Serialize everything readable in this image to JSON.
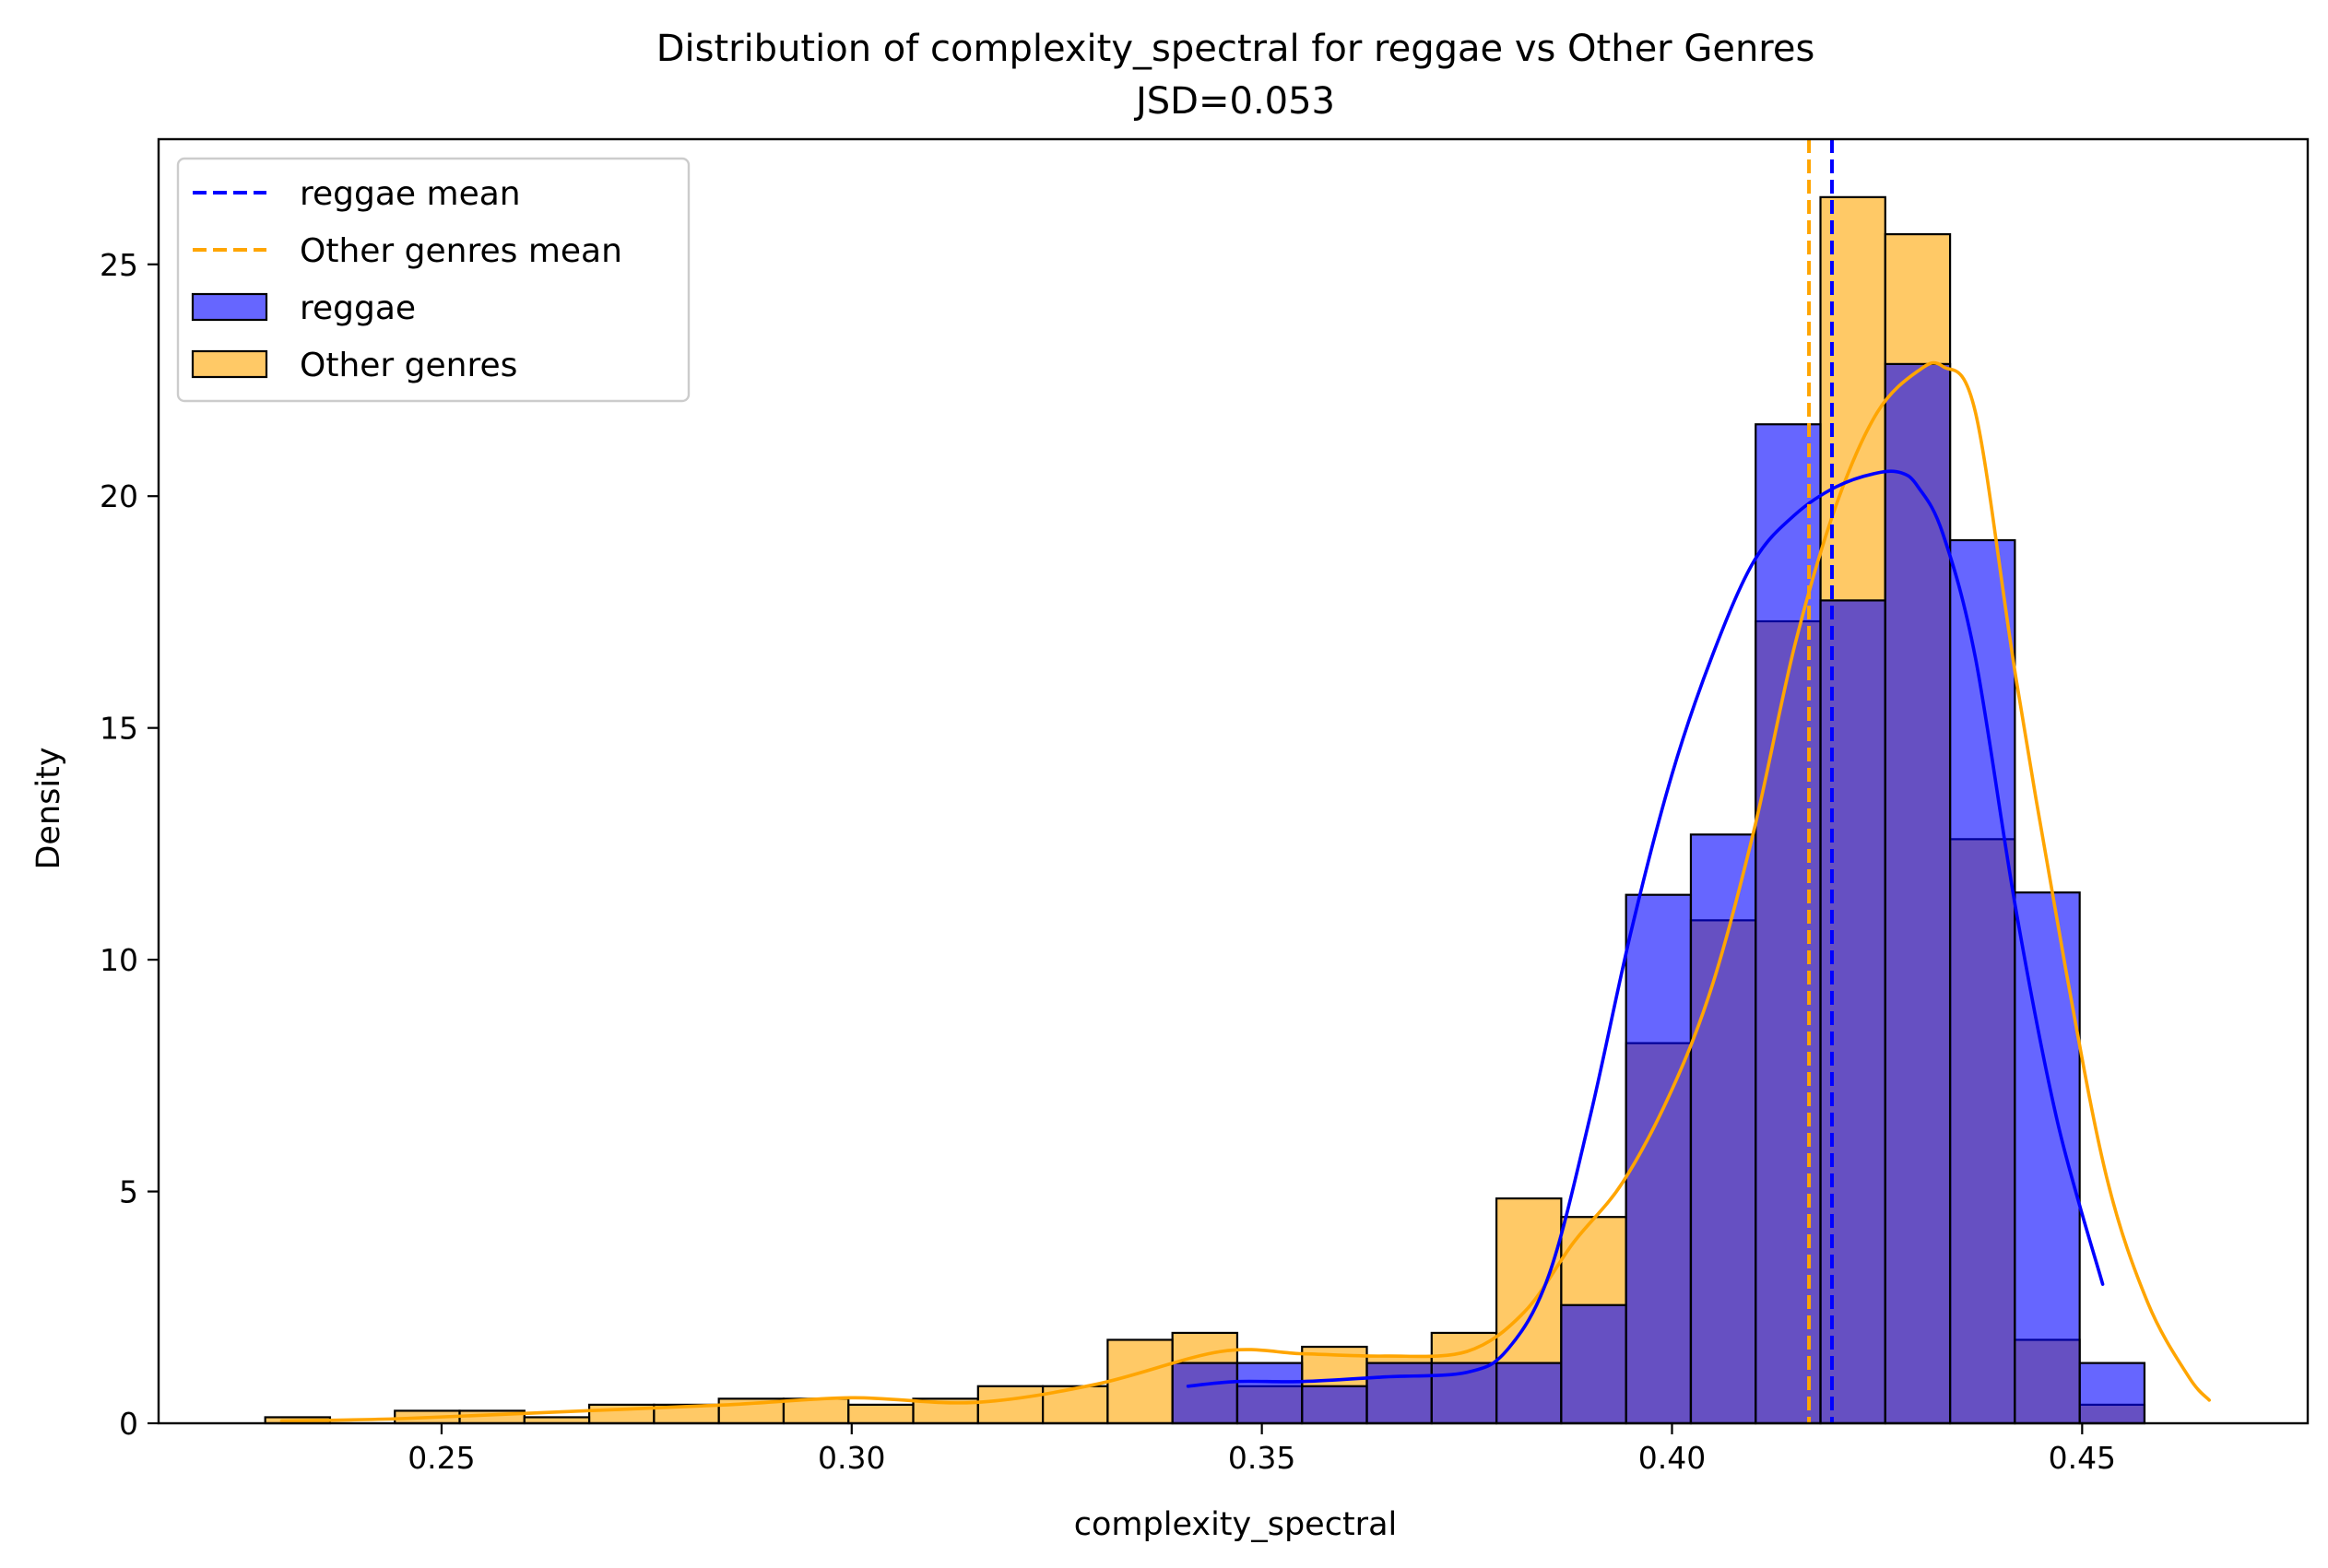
{
  "chart_data": {
    "type": "histogram",
    "title": "Distribution of complexity_spectral for reggae vs Other Genres",
    "subtitle": "JSD=0.053",
    "xlabel": "complexity_spectral",
    "ylabel": "Density",
    "xlim": [
      0.2155,
      0.4775
    ],
    "ylim": [
      0,
      27.7
    ],
    "x_ticks": [
      {
        "value": 0.25,
        "label": "0.25"
      },
      {
        "value": 0.3,
        "label": "0.30"
      },
      {
        "value": 0.35,
        "label": "0.35"
      },
      {
        "value": 0.4,
        "label": "0.40"
      },
      {
        "value": 0.45,
        "label": "0.45"
      }
    ],
    "y_ticks": [
      {
        "value": 0,
        "label": "0"
      },
      {
        "value": 5,
        "label": "5"
      },
      {
        "value": 10,
        "label": "10"
      },
      {
        "value": 15,
        "label": "15"
      },
      {
        "value": 20,
        "label": "20"
      },
      {
        "value": 25,
        "label": "25"
      }
    ],
    "grid": false,
    "legend_position": "top-left",
    "legend": [
      {
        "label": "reggae mean",
        "kind": "dashed-line",
        "color": "#0000ff"
      },
      {
        "label": "Other genres mean",
        "kind": "dashed-line",
        "color": "#ffa500"
      },
      {
        "label": "reggae",
        "kind": "patch",
        "color": "#0000ff"
      },
      {
        "label": "Other genres",
        "kind": "patch",
        "color": "#ffa500"
      }
    ],
    "series": [
      {
        "name": "Other genres",
        "color": "#ffa500",
        "opacity": 0.6,
        "bin_width": 0.0079,
        "bin_starts": [
          0.2285,
          0.2364,
          0.2443,
          0.2522,
          0.2601,
          0.268,
          0.2759,
          0.2838,
          0.2917,
          0.2996,
          0.3075,
          0.3154,
          0.3233,
          0.3312,
          0.3391,
          0.347,
          0.3549,
          0.3628,
          0.3707,
          0.3786,
          0.3865,
          0.3944,
          0.4023,
          0.4102,
          0.4181,
          0.426,
          0.4339,
          0.4418,
          0.4497,
          0.4576
        ],
        "values": [
          0.13,
          0.0,
          0.27,
          0.27,
          0.13,
          0.4,
          0.4,
          0.53,
          0.53,
          0.4,
          0.53,
          0.8,
          0.8,
          1.8,
          1.95,
          0.8,
          1.65,
          1.45,
          1.95,
          4.85,
          4.45,
          8.2,
          10.85,
          17.3,
          26.45,
          25.65,
          12.6,
          1.8,
          0.4,
          0.0
        ],
        "kde": {
          "x": [
            0.2305,
            0.245,
            0.265,
            0.285,
            0.3,
            0.315,
            0.33,
            0.345,
            0.355,
            0.365,
            0.375,
            0.382,
            0.388,
            0.394,
            0.4,
            0.405,
            0.41,
            0.415,
            0.42,
            0.425,
            0.43,
            0.433,
            0.437,
            0.442,
            0.448,
            0.453,
            0.458,
            0.463,
            0.4655
          ],
          "y": [
            0.05,
            0.1,
            0.25,
            0.4,
            0.55,
            0.45,
            0.85,
            1.55,
            1.5,
            1.45,
            1.55,
            2.4,
            3.9,
            5.2,
            7.2,
            9.5,
            12.8,
            16.8,
            19.8,
            21.8,
            22.7,
            22.8,
            21.8,
            16.0,
            9.8,
            5.3,
            2.6,
            1.0,
            0.5
          ]
        },
        "mean": 0.4167
      },
      {
        "name": "reggae",
        "color": "#0000ff",
        "opacity": 0.6,
        "bin_width": 0.0079,
        "bin_starts": [
          0.3391,
          0.347,
          0.3549,
          0.3628,
          0.3707,
          0.3786,
          0.3865,
          0.3944,
          0.4023,
          0.4102,
          0.4181,
          0.426,
          0.4339,
          0.4418,
          0.4497
        ],
        "values": [
          1.3,
          1.3,
          0.8,
          1.3,
          1.3,
          1.3,
          2.55,
          11.4,
          12.7,
          21.55,
          17.75,
          22.85,
          19.05,
          11.45,
          1.3
        ],
        "kde": {
          "x": [
            0.341,
            0.347,
            0.355,
            0.365,
            0.375,
            0.38,
            0.385,
            0.39,
            0.395,
            0.4,
            0.405,
            0.41,
            0.415,
            0.42,
            0.425,
            0.428,
            0.43,
            0.433,
            0.437,
            0.442,
            0.447,
            0.4525
          ],
          "y": [
            0.8,
            0.9,
            0.9,
            1.0,
            1.1,
            1.6,
            3.2,
            6.6,
            10.6,
            14.0,
            16.6,
            18.6,
            19.6,
            20.2,
            20.5,
            20.5,
            20.2,
            19.2,
            16.5,
            11.0,
            6.5,
            3.0
          ]
        },
        "mean": 0.4195
      }
    ],
    "draw_order": [
      "Other genres",
      "reggae"
    ]
  }
}
